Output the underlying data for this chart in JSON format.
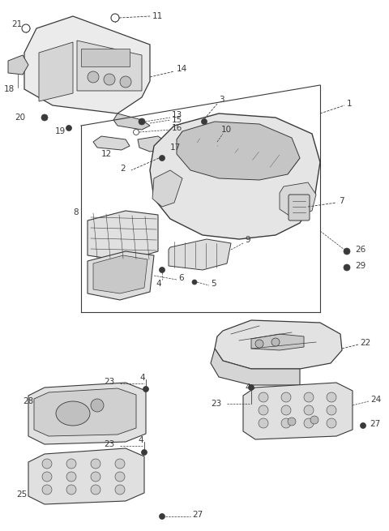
{
  "bg_color": "#ffffff",
  "line_color": "#3a3a3a",
  "fig_width": 4.8,
  "fig_height": 6.55,
  "dpi": 100
}
